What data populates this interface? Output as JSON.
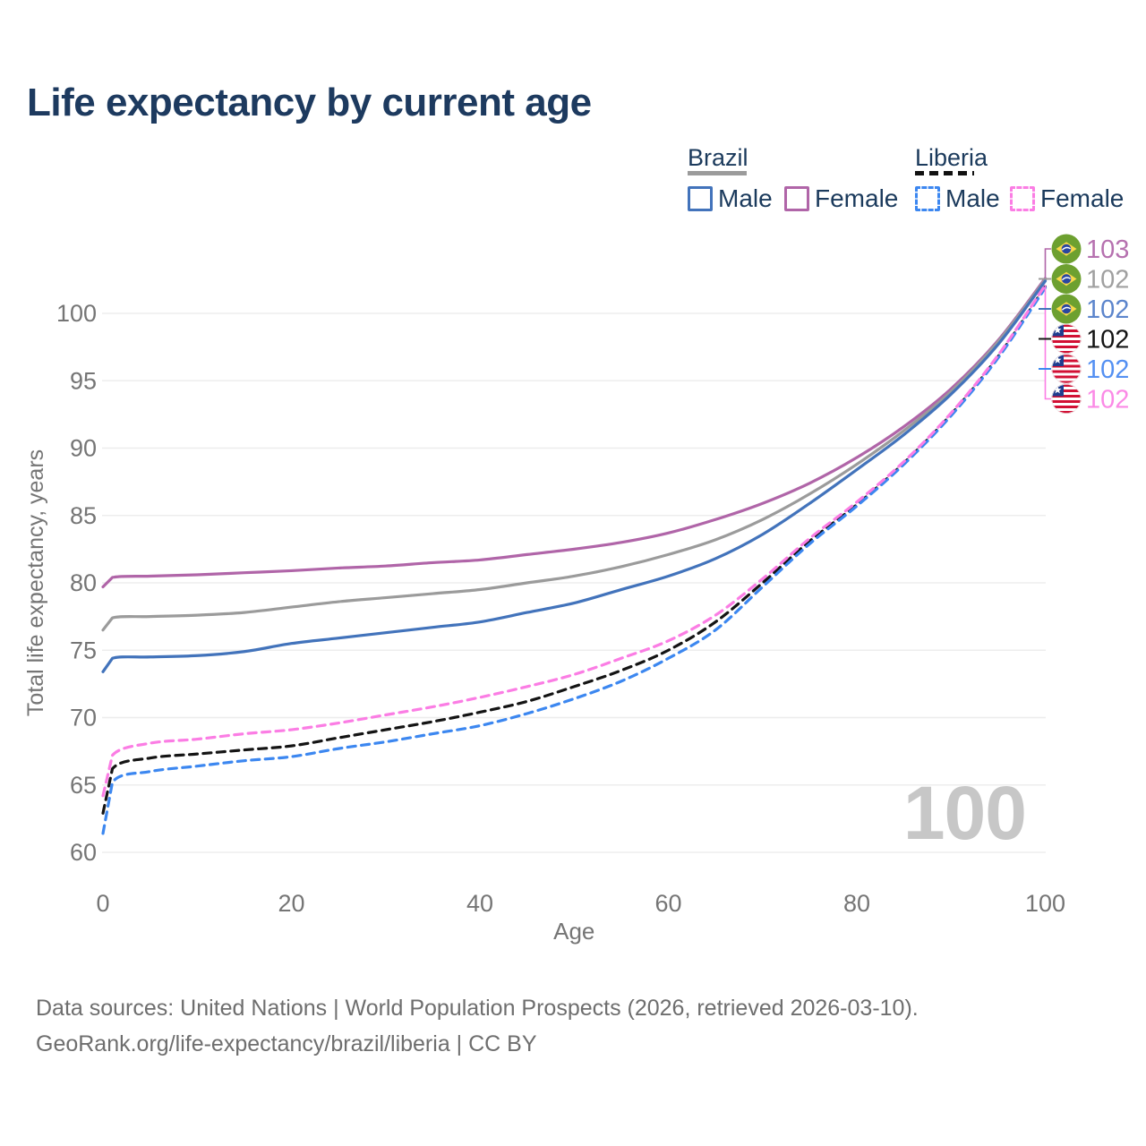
{
  "page": {
    "title": "Life expectancy by current age"
  },
  "colors": {
    "brazil_male": "#4273bb",
    "brazil_female": "#b065a8",
    "brazil_total": "#9b9b9b",
    "liberia_male": "#3c87f0",
    "liberia_female": "#fb7de4",
    "liberia_total": "#141414",
    "grid": "#ededed",
    "axis_text": "#757575",
    "title_text": "#1d3a5f",
    "watermark_text": "#c7c7c7"
  },
  "legend": {
    "brazil": {
      "label": "Brazil",
      "male": "Male",
      "female": "Female"
    },
    "liberia": {
      "label": "Liberia",
      "male": "Male",
      "female": "Female"
    }
  },
  "watermark": "100",
  "footer": {
    "line1": "Data sources: United Nations | World Population Prospects (2026, retrieved 2026-03-10).",
    "line2": "GeoRank.org/life-expectancy/brazil/liberia | CC BY"
  },
  "chart_data": {
    "type": "line",
    "title": "Life expectancy by current age",
    "xlabel": "Age",
    "ylabel": "Total life expectancy, years",
    "xlim": [
      0,
      100
    ],
    "ylim": [
      60,
      100
    ],
    "x_ticks": [
      0,
      20,
      40,
      60,
      80,
      100
    ],
    "y_ticks": [
      60,
      65,
      70,
      75,
      80,
      85,
      90,
      95,
      100
    ],
    "grid": "horizontal-only",
    "legend_position": "top-right",
    "frame_age_indicator": "100",
    "x": [
      0,
      1,
      5,
      10,
      15,
      20,
      25,
      30,
      35,
      40,
      45,
      50,
      55,
      60,
      65,
      70,
      75,
      80,
      85,
      90,
      95,
      100
    ],
    "series": [
      {
        "name": "Brazil Female",
        "country": "brazil",
        "sex": "female",
        "style": "solid",
        "color_key": "brazil_female",
        "values": [
          79.7,
          80.4,
          80.5,
          80.6,
          80.75,
          80.9,
          81.1,
          81.25,
          81.5,
          81.7,
          82.1,
          82.5,
          83.0,
          83.7,
          84.7,
          85.9,
          87.4,
          89.3,
          91.6,
          94.4,
          98.0,
          102.6
        ]
      },
      {
        "name": "Brazil Total",
        "country": "brazil",
        "sex": "total",
        "style": "solid",
        "color_key": "brazil_total",
        "values": [
          76.5,
          77.4,
          77.5,
          77.6,
          77.8,
          78.2,
          78.6,
          78.9,
          79.2,
          79.5,
          80.0,
          80.5,
          81.2,
          82.1,
          83.2,
          84.7,
          86.6,
          88.8,
          91.3,
          94.2,
          97.9,
          102.5
        ]
      },
      {
        "name": "Brazil Male",
        "country": "brazil",
        "sex": "male",
        "style": "solid",
        "color_key": "brazil_male",
        "values": [
          73.4,
          74.4,
          74.5,
          74.6,
          74.9,
          75.5,
          75.9,
          76.3,
          76.7,
          77.1,
          77.8,
          78.5,
          79.5,
          80.5,
          81.8,
          83.6,
          85.9,
          88.4,
          91.0,
          94.0,
          97.7,
          102.4
        ]
      },
      {
        "name": "Liberia Total",
        "country": "liberia",
        "sex": "total",
        "style": "dashed",
        "color_key": "liberia_total",
        "values": [
          62.9,
          66.2,
          67.0,
          67.3,
          67.6,
          67.9,
          68.5,
          69.1,
          69.7,
          70.4,
          71.2,
          72.3,
          73.5,
          75.0,
          77.1,
          80.0,
          83.1,
          85.8,
          88.9,
          92.5,
          96.8,
          102.0
        ]
      },
      {
        "name": "Liberia Male",
        "country": "liberia",
        "sex": "male",
        "style": "dashed",
        "color_key": "liberia_male",
        "values": [
          61.4,
          65.2,
          66.0,
          66.4,
          66.8,
          67.1,
          67.7,
          68.2,
          68.8,
          69.4,
          70.3,
          71.4,
          72.7,
          74.4,
          76.5,
          79.7,
          82.9,
          85.7,
          88.8,
          92.4,
          96.7,
          101.9
        ]
      },
      {
        "name": "Liberia Female",
        "country": "liberia",
        "sex": "female",
        "style": "dashed",
        "color_key": "liberia_female",
        "values": [
          64.2,
          67.2,
          68.1,
          68.4,
          68.8,
          69.1,
          69.6,
          70.2,
          70.8,
          71.5,
          72.3,
          73.2,
          74.4,
          75.7,
          77.6,
          80.3,
          83.3,
          86.0,
          89.0,
          92.6,
          96.9,
          102.1
        ]
      }
    ],
    "end_labels": [
      {
        "country": "brazil",
        "series": "Brazil Female",
        "value": "103",
        "text_color": "#b671af",
        "connector_color": "#b065a8"
      },
      {
        "country": "brazil",
        "series": "Brazil Total",
        "value": "102",
        "text_color": "#a0a0a0",
        "connector_color": "#9b9b9b"
      },
      {
        "country": "brazil",
        "series": "Brazil Male",
        "value": "102",
        "text_color": "#5c85cc",
        "connector_color": "#4273bb"
      },
      {
        "country": "liberia",
        "series": "Liberia Total",
        "value": "102",
        "text_color": "#141414",
        "connector_color": "#141414"
      },
      {
        "country": "liberia",
        "series": "Liberia Male",
        "value": "102",
        "text_color": "#5490f2",
        "connector_color": "#3c87f0"
      },
      {
        "country": "liberia",
        "series": "Liberia Female",
        "value": "102",
        "text_color": "#fb8ae6",
        "connector_color": "#fb7de4"
      }
    ]
  }
}
